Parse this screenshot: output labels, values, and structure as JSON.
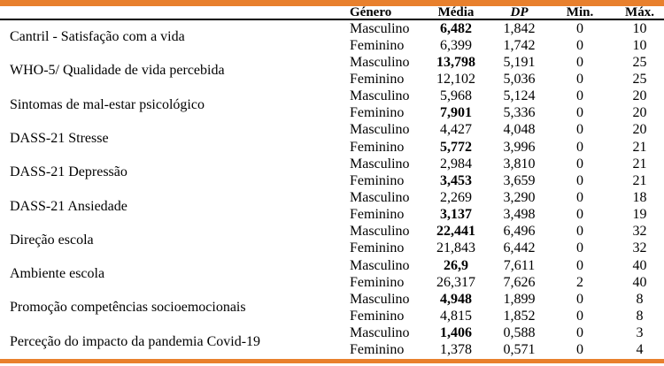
{
  "colors": {
    "accent_bar": "#E8802D",
    "rule": "#000000",
    "text": "#000000",
    "background": "#FFFFFF"
  },
  "table": {
    "headers": {
      "label": "",
      "genero": "Género",
      "media": "Média",
      "dp": "DP",
      "min": "Min.",
      "max": "Máx."
    },
    "groups": [
      {
        "label": "Cantril - Satisfação com a vida",
        "rows": [
          {
            "genero": "Masculino",
            "media": "6,482",
            "media_bold": true,
            "dp": "1,842",
            "min": "0",
            "max": "10"
          },
          {
            "genero": "Feminino",
            "media": "6,399",
            "media_bold": false,
            "dp": "1,742",
            "min": "0",
            "max": "10"
          }
        ]
      },
      {
        "label": "WHO-5/ Qualidade de vida percebida",
        "rows": [
          {
            "genero": "Masculino",
            "media": "13,798",
            "media_bold": true,
            "dp": "5,191",
            "min": "0",
            "max": "25"
          },
          {
            "genero": "Feminino",
            "media": "12,102",
            "media_bold": false,
            "dp": "5,036",
            "min": "0",
            "max": "25"
          }
        ]
      },
      {
        "label": "Sintomas de mal-estar psicológico",
        "rows": [
          {
            "genero": "Masculino",
            "media": "5,968",
            "media_bold": false,
            "dp": "5,124",
            "min": "0",
            "max": "20"
          },
          {
            "genero": "Feminino",
            "media": "7,901",
            "media_bold": true,
            "dp": "5,336",
            "min": "0",
            "max": "20"
          }
        ]
      },
      {
        "label": "DASS-21 Stresse",
        "rows": [
          {
            "genero": "Masculino",
            "media": "4,427",
            "media_bold": false,
            "dp": "4,048",
            "min": "0",
            "max": "20"
          },
          {
            "genero": "Feminino",
            "media": "5,772",
            "media_bold": true,
            "dp": "3,996",
            "min": "0",
            "max": "21"
          }
        ]
      },
      {
        "label": "DASS-21 Depressão",
        "rows": [
          {
            "genero": "Masculino",
            "media": "2,984",
            "media_bold": false,
            "dp": "3,810",
            "min": "0",
            "max": "21"
          },
          {
            "genero": "Feminino",
            "media": "3,453",
            "media_bold": true,
            "dp": "3,659",
            "min": "0",
            "max": "21"
          }
        ]
      },
      {
        "label": "DASS-21 Ansiedade",
        "rows": [
          {
            "genero": "Masculino",
            "media": "2,269",
            "media_bold": false,
            "dp": "3,290",
            "min": "0",
            "max": "18"
          },
          {
            "genero": "Feminino",
            "media": "3,137",
            "media_bold": true,
            "dp": "3,498",
            "min": "0",
            "max": "19"
          }
        ]
      },
      {
        "label": "Direção escola",
        "rows": [
          {
            "genero": "Masculino",
            "media": "22,441",
            "media_bold": true,
            "dp": "6,496",
            "min": "0",
            "max": "32"
          },
          {
            "genero": "Feminino",
            "media": "21,843",
            "media_bold": false,
            "dp": "6,442",
            "min": "0",
            "max": "32"
          }
        ]
      },
      {
        "label": "Ambiente escola",
        "rows": [
          {
            "genero": "Masculino",
            "media": "26,9",
            "media_bold": true,
            "dp": "7,611",
            "min": "0",
            "max": "40"
          },
          {
            "genero": "Feminino",
            "media": "26,317",
            "media_bold": false,
            "dp": "7,626",
            "min": "2",
            "max": "40"
          }
        ]
      },
      {
        "label": "Promoção competências socioemocionais",
        "rows": [
          {
            "genero": "Masculino",
            "media": "4,948",
            "media_bold": true,
            "dp": "1,899",
            "min": "0",
            "max": "8"
          },
          {
            "genero": "Feminino",
            "media": "4,815",
            "media_bold": false,
            "dp": "1,852",
            "min": "0",
            "max": "8"
          }
        ]
      },
      {
        "label": "Perceção do impacto da pandemia Covid-19",
        "rows": [
          {
            "genero": "Masculino",
            "media": "1,406",
            "media_bold": true,
            "dp": "0,588",
            "min": "0",
            "max": "3"
          },
          {
            "genero": "Feminino",
            "media": "1,378",
            "media_bold": false,
            "dp": "0,571",
            "min": "0",
            "max": "4"
          }
        ]
      }
    ]
  }
}
